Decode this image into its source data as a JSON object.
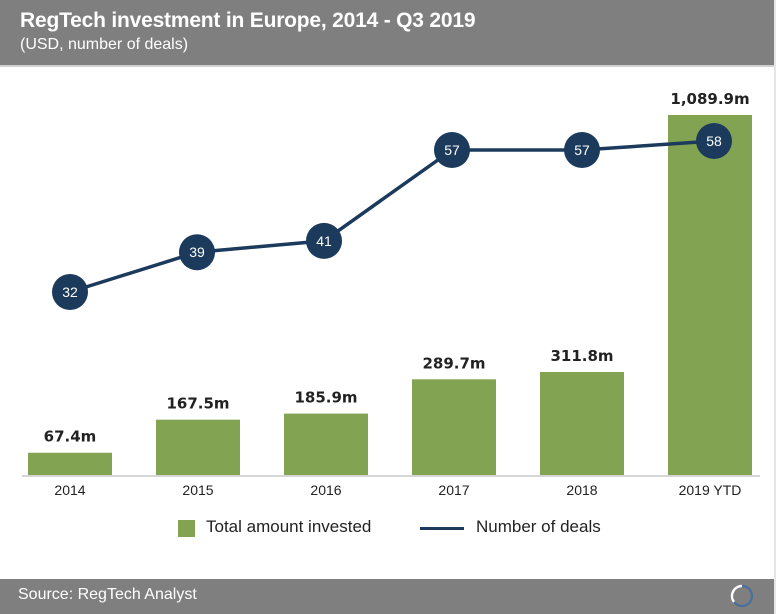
{
  "header": {
    "title": "RegTech investment in Europe, 2014 - Q3 2019",
    "subtitle": "(USD, number of deals)"
  },
  "footer": {
    "source": "Source: RegTech Analyst",
    "logo_icon": "circle-ring-logo-icon"
  },
  "colors": {
    "header_bg": "#7f7f7f",
    "bar": "#82a452",
    "line": "#1b3a5c",
    "marker": "#1b3a5c",
    "axis": "#c8c8c8",
    "text": "#222222"
  },
  "legend": {
    "bar_label": "Total amount invested",
    "line_label": "Number of deals"
  },
  "chart_data": {
    "type": "bar",
    "title": "RegTech investment in Europe, 2014 - Q3 2019",
    "subtitle": "(USD, number of deals)",
    "xlabel": "",
    "ylabel": "",
    "categories": [
      "2014",
      "2015",
      "2016",
      "2017",
      "2018",
      "2019 YTD"
    ],
    "series": [
      {
        "name": "Total amount invested",
        "type": "bar",
        "unit": "USD m",
        "values": [
          67.4,
          167.5,
          185.9,
          289.7,
          311.8,
          1089.9
        ],
        "labels": [
          "67.4m",
          "167.5m",
          "185.9m",
          "289.7m",
          "311.8m",
          "1,089.9m"
        ]
      },
      {
        "name": "Number of deals",
        "type": "line",
        "values": [
          32,
          39,
          41,
          57,
          57,
          58
        ],
        "labels": [
          "32",
          "39",
          "41",
          "57",
          "57",
          "58"
        ]
      }
    ],
    "grid": false,
    "legend_position": "bottom",
    "source": "Source: RegTech Analyst"
  }
}
